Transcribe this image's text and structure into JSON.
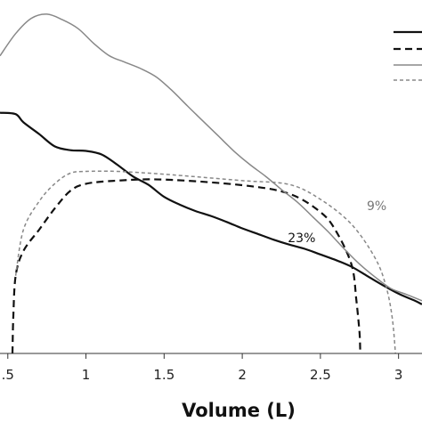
{
  "chart_data": {
    "type": "line",
    "xlabel": "Volume (L)",
    "xlim": [
      0.45,
      3.15
    ],
    "ylim": [
      0,
      100
    ],
    "x_ticks": [
      {
        "value": 0.5,
        "label": ".5"
      },
      {
        "value": 1,
        "label": "1"
      },
      {
        "value": 1.5,
        "label": "1.5"
      },
      {
        "value": 2,
        "label": "2"
      },
      {
        "value": 2.5,
        "label": "2.5"
      },
      {
        "value": 3,
        "label": "3"
      }
    ],
    "grid": false,
    "legend_placement": "top-right",
    "series": [
      {
        "color": "#111111",
        "style": "solid",
        "x": [
          0.45,
          0.55,
          0.6,
          0.7,
          0.8,
          0.9,
          1.0,
          1.1,
          1.2,
          1.3,
          1.4,
          1.5,
          1.6,
          1.7,
          1.8,
          1.9,
          2.0,
          2.1,
          2.2,
          2.3,
          2.4,
          2.5,
          2.6,
          2.7,
          2.8,
          2.9,
          3.0,
          3.1,
          3.15
        ],
        "y": [
          68.1,
          67.7,
          65.4,
          62.1,
          58.6,
          57.5,
          57.3,
          56.3,
          53.4,
          50.1,
          47.7,
          44.3,
          42.1,
          40.3,
          38.9,
          37.2,
          35.4,
          33.8,
          32.2,
          30.8,
          29.6,
          28.0,
          26.4,
          24.5,
          21.9,
          19.3,
          16.9,
          15.0,
          13.9
        ]
      },
      {
        "color": "#111111",
        "style": "dashed",
        "x": [
          0.53,
          0.535,
          0.55,
          0.6,
          0.7,
          0.8,
          0.9,
          1.0,
          1.2,
          1.5,
          2.0,
          2.3,
          2.5,
          2.6,
          2.7,
          2.73,
          2.75,
          2.755
        ],
        "y": [
          0,
          10,
          22,
          29,
          35,
          41,
          46,
          48,
          48.9,
          49.2,
          47.6,
          45.2,
          40.0,
          34.6,
          25.0,
          15.0,
          6.0,
          0
        ]
      },
      {
        "color": "#888888",
        "style": "solid",
        "x": [
          0.45,
          0.55,
          0.65,
          0.75,
          0.85,
          0.95,
          1.05,
          1.15,
          1.25,
          1.35,
          1.45,
          1.55,
          1.65,
          1.75,
          1.85,
          1.95,
          2.05,
          2.15,
          2.25,
          2.35,
          2.45,
          2.55,
          2.65,
          2.75,
          2.85,
          2.95,
          3.05,
          3.15
        ],
        "y": [
          84.2,
          90.5,
          94.8,
          96.0,
          94.4,
          91.9,
          87.7,
          84.2,
          82.4,
          80.6,
          78.2,
          74.4,
          70.0,
          65.7,
          61.4,
          57.1,
          53.4,
          50.1,
          46.4,
          42.9,
          38.7,
          34.4,
          29.7,
          25.3,
          21.6,
          18.4,
          16.7,
          14.9
        ]
      },
      {
        "color": "#888888",
        "style": "dashed",
        "x": [
          0.55,
          0.6,
          0.7,
          0.8,
          0.9,
          1.0,
          1.2,
          1.5,
          2.0,
          2.3,
          2.5,
          2.7,
          2.85,
          2.92,
          2.96,
          2.98
        ],
        "y": [
          22,
          35,
          43,
          48,
          51,
          51.5,
          51.5,
          50.7,
          48.9,
          47.8,
          43.6,
          36.5,
          27.0,
          19.0,
          10.0,
          0
        ]
      }
    ],
    "annotations": [
      {
        "text": "9%",
        "x": 2.86,
        "y": 40.5,
        "color": "#777777"
      },
      {
        "text": "23%",
        "x": 2.38,
        "y": 31.5,
        "color": "#111111"
      }
    ]
  }
}
